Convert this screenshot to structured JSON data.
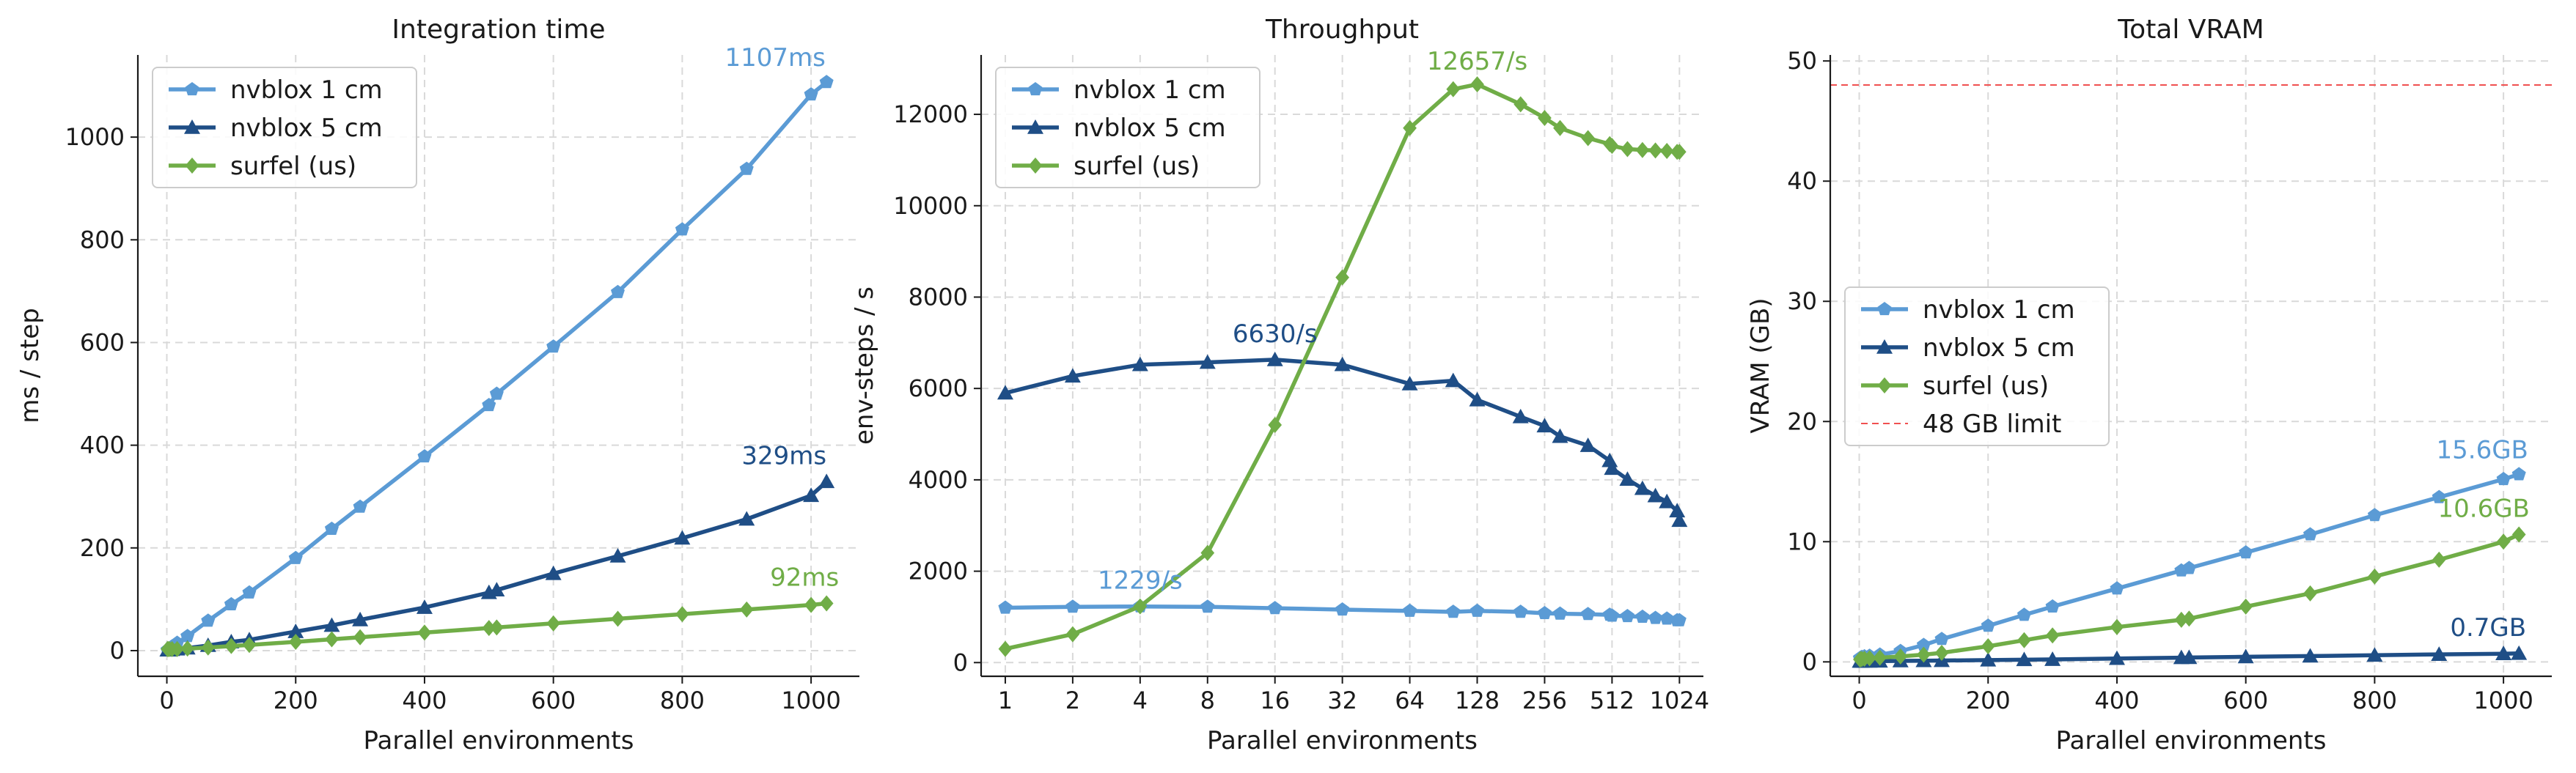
{
  "chart_data": [
    {
      "type": "line",
      "title": "Integration time",
      "xlabel": "Parallel environments",
      "ylabel": "ms / step",
      "xscale": "linear",
      "xlim": [
        -45,
        1075
      ],
      "ylim": [
        -50,
        1160
      ],
      "xticks": [
        0,
        200,
        400,
        600,
        800,
        1000
      ],
      "xtick_labels": [
        "0",
        "200",
        "400",
        "600",
        "800",
        "1000"
      ],
      "yticks": [
        0,
        200,
        400,
        600,
        800,
        1000
      ],
      "ytick_labels": [
        "0",
        "200",
        "400",
        "600",
        "800",
        "1000"
      ],
      "grid": true,
      "legend": "top-left",
      "series": [
        {
          "name": "nvblox 1 cm",
          "color": "#5b9bd5",
          "marker": "pentagon",
          "x": [
            1,
            2,
            4,
            8,
            16,
            32,
            64,
            100,
            128,
            200,
            256,
            300,
            400,
            500,
            512,
            600,
            700,
            800,
            900,
            1000,
            1024
          ],
          "y": [
            1,
            2,
            4,
            8,
            15,
            28,
            58,
            90,
            113,
            180,
            237,
            280,
            378,
            478,
            500,
            592,
            698,
            820,
            938,
            1083,
            1107
          ]
        },
        {
          "name": "nvblox 5 cm",
          "color": "#1f4e86",
          "marker": "triangle",
          "x": [
            1,
            2,
            4,
            8,
            16,
            32,
            64,
            100,
            128,
            200,
            256,
            300,
            400,
            500,
            512,
            600,
            700,
            800,
            900,
            1000,
            1024
          ],
          "y": [
            1,
            1,
            1,
            2,
            3,
            5,
            10,
            17,
            21,
            37,
            49,
            60,
            84,
            113,
            118,
            150,
            184,
            219,
            256,
            302,
            329
          ]
        },
        {
          "name": "surfel (us)",
          "color": "#70ad47",
          "marker": "diamond",
          "x": [
            1,
            2,
            4,
            8,
            16,
            32,
            64,
            100,
            128,
            200,
            256,
            300,
            400,
            500,
            512,
            600,
            700,
            800,
            900,
            1000,
            1024
          ],
          "y": [
            3,
            3,
            3,
            3,
            3,
            4,
            6,
            9,
            11,
            17,
            22,
            26,
            35,
            44,
            45,
            53,
            62,
            71,
            80,
            89,
            92
          ]
        }
      ],
      "annotations": [
        {
          "text": "1107ms",
          "x": 1024,
          "y": 1107,
          "series": 0
        },
        {
          "text": "329ms",
          "x": 1024,
          "y": 329,
          "series": 1
        },
        {
          "text": "92ms",
          "x": 1024,
          "y": 92,
          "series": 2
        }
      ]
    },
    {
      "type": "line",
      "title": "Throughput",
      "xlabel": "Parallel environments",
      "ylabel": "env-steps / s",
      "xscale": "log2",
      "xlim": [
        0.78,
        1310
      ],
      "ylim": [
        -300,
        13300
      ],
      "xticks": [
        1,
        2,
        4,
        8,
        16,
        32,
        64,
        128,
        256,
        512,
        1024
      ],
      "xtick_labels": [
        "1",
        "2",
        "4",
        "8",
        "16",
        "32",
        "64",
        "128",
        "256",
        "512",
        "1024"
      ],
      "yticks": [
        0,
        2000,
        4000,
        6000,
        8000,
        10000,
        12000
      ],
      "ytick_labels": [
        "0",
        "2000",
        "4000",
        "6000",
        "8000",
        "10000",
        "12000"
      ],
      "grid": true,
      "legend": "top-left",
      "series": [
        {
          "name": "nvblox 1 cm",
          "color": "#5b9bd5",
          "marker": "pentagon",
          "x": [
            1,
            2,
            4,
            8,
            16,
            32,
            64,
            100,
            128,
            200,
            256,
            300,
            400,
            500,
            512,
            600,
            700,
            800,
            900,
            1000,
            1024
          ],
          "y": [
            1200,
            1220,
            1229,
            1220,
            1190,
            1160,
            1130,
            1110,
            1130,
            1110,
            1080,
            1070,
            1060,
            1045,
            1025,
            1015,
            1000,
            975,
            960,
            925,
            925
          ]
        },
        {
          "name": "nvblox 5 cm",
          "color": "#1f4e86",
          "marker": "triangle",
          "x": [
            1,
            2,
            4,
            8,
            16,
            32,
            64,
            100,
            128,
            200,
            256,
            300,
            400,
            500,
            512,
            600,
            700,
            800,
            900,
            1000,
            1024
          ],
          "y": [
            5900,
            6270,
            6520,
            6570,
            6630,
            6520,
            6100,
            6170,
            5750,
            5380,
            5180,
            4950,
            4750,
            4420,
            4250,
            4010,
            3810,
            3650,
            3520,
            3320,
            3110
          ]
        },
        {
          "name": "surfel (us)",
          "color": "#70ad47",
          "marker": "diamond",
          "x": [
            1,
            2,
            4,
            8,
            16,
            32,
            64,
            100,
            128,
            200,
            256,
            300,
            400,
            500,
            512,
            600,
            700,
            800,
            900,
            1000,
            1024
          ],
          "y": [
            300,
            620,
            1230,
            2400,
            5200,
            8430,
            11700,
            12550,
            12657,
            12220,
            11920,
            11700,
            11480,
            11350,
            11310,
            11240,
            11220,
            11210,
            11200,
            11180,
            11180
          ]
        }
      ],
      "annotations": [
        {
          "text": "1229/s",
          "x": 4,
          "y": 1229,
          "series": 0
        },
        {
          "text": "6630/s",
          "x": 16,
          "y": 6630,
          "series": 1
        },
        {
          "text": "12657/s",
          "x": 128,
          "y": 12657,
          "series": 2
        }
      ]
    },
    {
      "type": "line",
      "title": "Total VRAM",
      "xlabel": "Parallel environments",
      "ylabel": "VRAM (GB)",
      "xscale": "linear",
      "xlim": [
        -45,
        1075
      ],
      "ylim": [
        -1.2,
        50.5
      ],
      "xticks": [
        0,
        200,
        400,
        600,
        800,
        1000
      ],
      "xtick_labels": [
        "0",
        "200",
        "400",
        "600",
        "800",
        "1000"
      ],
      "yticks": [
        0,
        10,
        20,
        30,
        40,
        50
      ],
      "ytick_labels": [
        "0",
        "10",
        "20",
        "30",
        "40",
        "50"
      ],
      "grid": true,
      "legend": "center-left",
      "series": [
        {
          "name": "nvblox 1 cm",
          "color": "#5b9bd5",
          "marker": "pentagon",
          "x": [
            1,
            2,
            4,
            8,
            16,
            32,
            64,
            100,
            128,
            200,
            256,
            300,
            400,
            500,
            512,
            600,
            700,
            800,
            900,
            1000,
            1024
          ],
          "y": [
            0.3,
            0.35,
            0.4,
            0.45,
            0.5,
            0.6,
            0.9,
            1.4,
            1.9,
            3.0,
            3.9,
            4.6,
            6.1,
            7.6,
            7.8,
            9.1,
            10.6,
            12.2,
            13.7,
            15.2,
            15.6
          ]
        },
        {
          "name": "nvblox 5 cm",
          "color": "#1f4e86",
          "marker": "triangle",
          "x": [
            1,
            2,
            4,
            8,
            16,
            32,
            64,
            100,
            128,
            200,
            256,
            300,
            400,
            500,
            512,
            600,
            700,
            800,
            900,
            1000,
            1024
          ],
          "y": [
            0.05,
            0.05,
            0.05,
            0.05,
            0.05,
            0.06,
            0.08,
            0.1,
            0.11,
            0.15,
            0.18,
            0.2,
            0.28,
            0.35,
            0.36,
            0.42,
            0.48,
            0.55,
            0.62,
            0.68,
            0.7
          ]
        },
        {
          "name": "surfel (us)",
          "color": "#70ad47",
          "marker": "diamond",
          "x": [
            1,
            2,
            4,
            8,
            16,
            32,
            64,
            100,
            128,
            200,
            256,
            300,
            400,
            500,
            512,
            600,
            700,
            800,
            900,
            1000,
            1024
          ],
          "y": [
            0.2,
            0.22,
            0.24,
            0.26,
            0.3,
            0.35,
            0.45,
            0.6,
            0.75,
            1.3,
            1.8,
            2.2,
            2.9,
            3.5,
            3.6,
            4.6,
            5.7,
            7.1,
            8.5,
            10.0,
            10.6
          ]
        }
      ],
      "reference_lines": [
        {
          "name": "48 GB limit",
          "y": 48,
          "color": "#f05050",
          "style": "dashed"
        }
      ],
      "annotations": [
        {
          "text": "15.6GB",
          "x": 1024,
          "y": 15.6,
          "series": 0
        },
        {
          "text": "0.7GB",
          "x": 1024,
          "y": 0.7,
          "series": 1
        },
        {
          "text": "10.6GB",
          "x": 1024,
          "y": 10.6,
          "series": 2
        }
      ]
    }
  ]
}
